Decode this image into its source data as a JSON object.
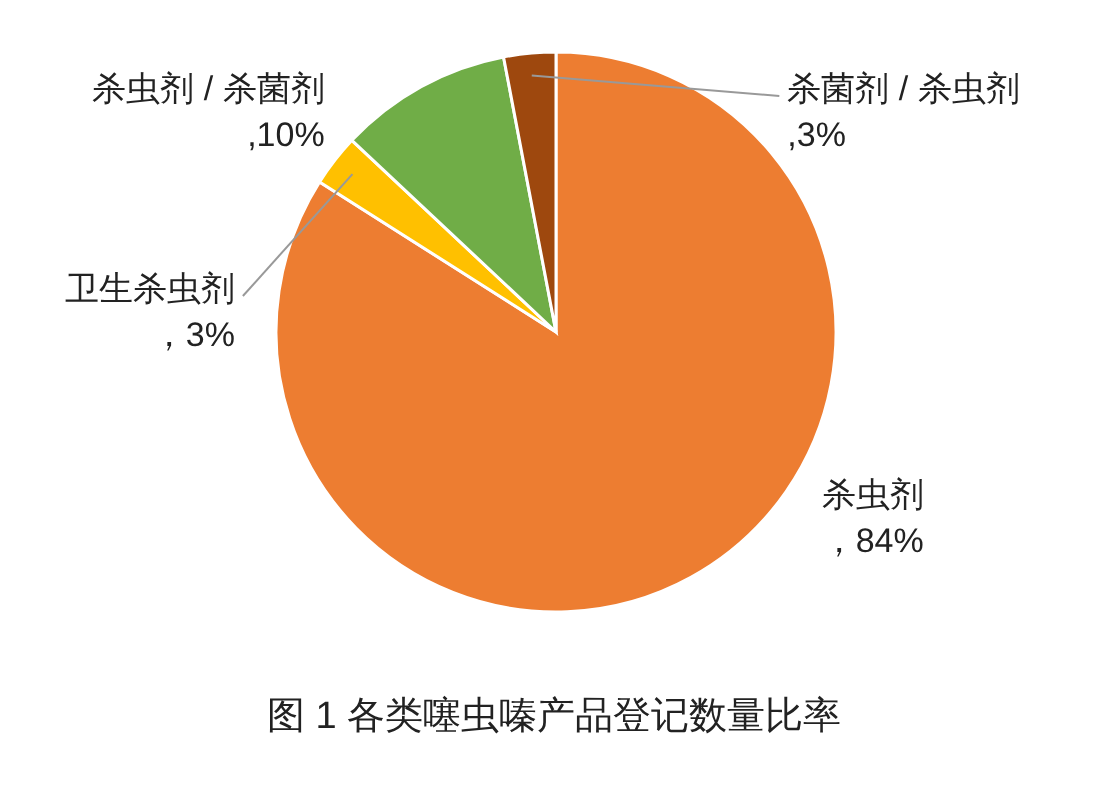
{
  "chart_data": {
    "type": "pie",
    "title": "图 1 各类噻虫嗪产品登记数量比率",
    "categories": [
      "杀虫剂",
      "卫生杀虫剂",
      "杀虫剂 / 杀菌剂",
      "杀菌剂 / 杀虫剂"
    ],
    "values": [
      84,
      3,
      10,
      3
    ],
    "colors": [
      "#ed7d31",
      "#ffc000",
      "#70ad47",
      "#9e480e"
    ],
    "value_labels": [
      "，84%",
      "，3%",
      ",10%",
      ",3%"
    ]
  }
}
